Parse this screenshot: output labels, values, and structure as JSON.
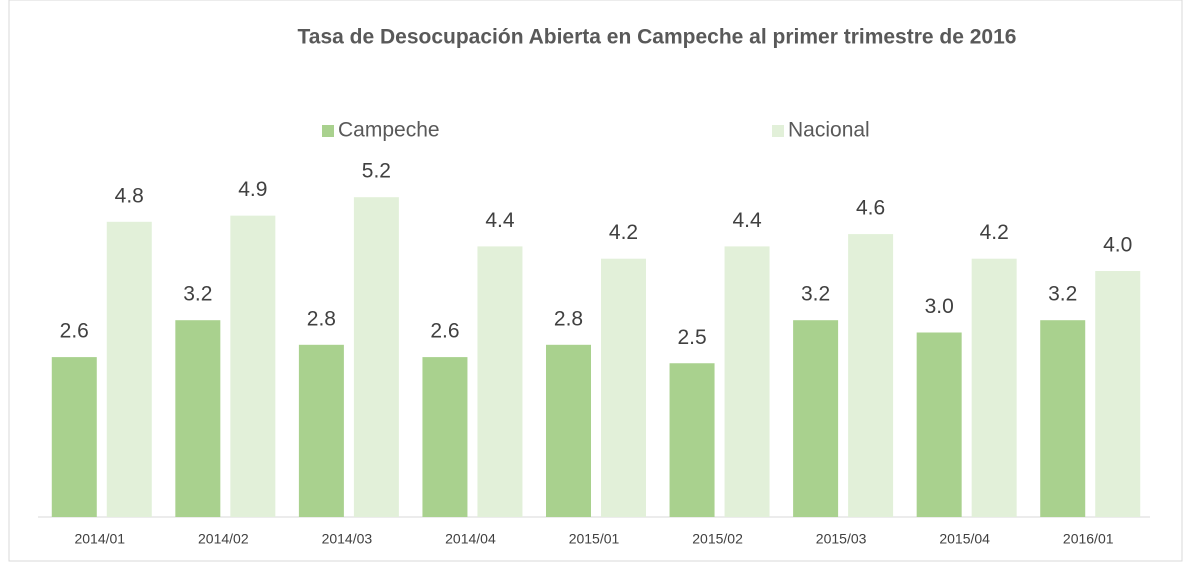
{
  "chart_data": {
    "type": "bar",
    "title": "Tasa de Desocupación Abierta en Campeche al primer trimestre de 2016",
    "categories": [
      "2014/01",
      "2014/02",
      "2014/03",
      "2014/04",
      "2015/01",
      "2015/02",
      "2015/03",
      "2015/04",
      "2016/01"
    ],
    "series": [
      {
        "name": "Campeche",
        "color": "#a9d18e",
        "values": [
          2.6,
          3.2,
          2.8,
          2.6,
          2.8,
          2.5,
          3.2,
          3.0,
          3.2
        ],
        "value_labels": [
          "2.6",
          "3.2",
          "2.8",
          "2.6",
          "2.8",
          "2.5",
          "3.2",
          "3.0",
          "3.2"
        ]
      },
      {
        "name": "Nacional",
        "color": "#e2f0d9",
        "values": [
          4.8,
          4.9,
          5.2,
          4.4,
          4.2,
          4.4,
          4.6,
          4.2,
          4.0
        ],
        "value_labels": [
          "4.8",
          "4.9",
          "5.2",
          "4.4",
          "4.2",
          "4.4",
          "4.6",
          "4.2",
          "4.0"
        ]
      }
    ],
    "legend": "top"
  }
}
